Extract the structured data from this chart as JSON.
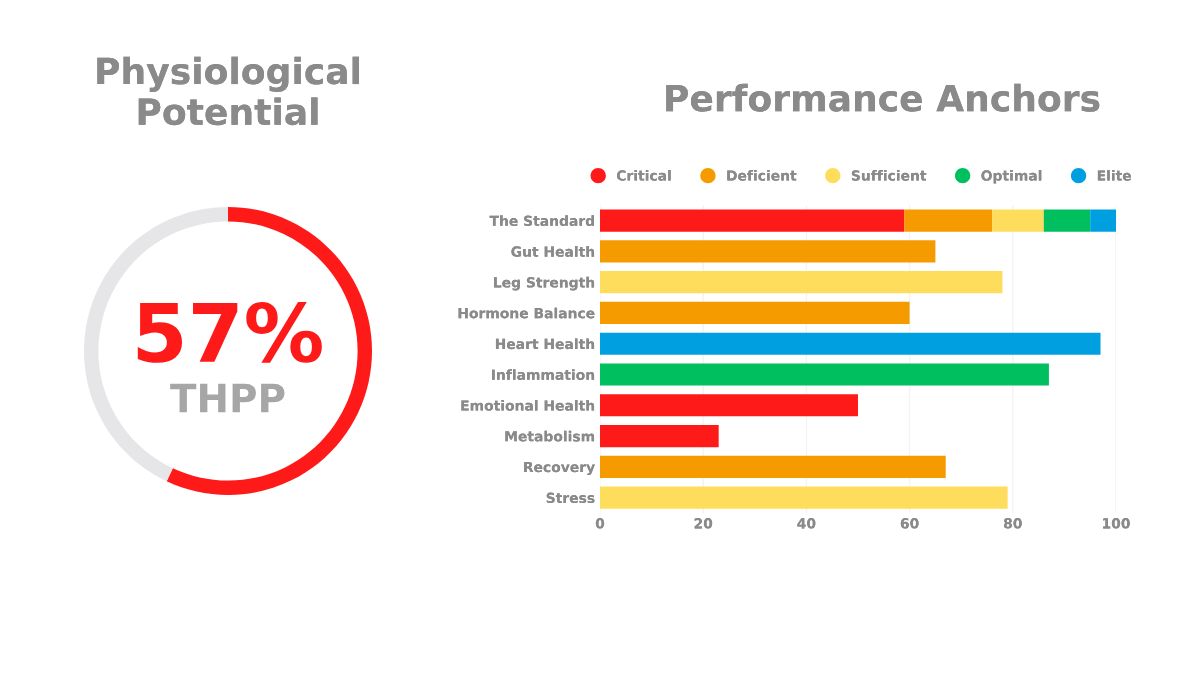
{
  "chart_data": [
    {
      "type": "donut",
      "title": "Physiological Potential",
      "categories": [
        null,
        null
      ],
      "values": [
        57,
        43
      ],
      "colors": [
        "#ff1a1a",
        "#e6e6e8"
      ],
      "annotations": [
        "57%",
        "THPP"
      ]
    },
    {
      "type": "bar",
      "title": "Performance Anchors",
      "orientation": "horizontal",
      "stacked": true,
      "categories": [
        "The Standard",
        "Gut Health",
        "Leg Strength",
        "Hormone Balance",
        "Heart Health",
        "Inflammation",
        "Emotional Health",
        "Metabolism",
        "Recovery",
        "Stress"
      ],
      "series": [
        {
          "name": "Critical",
          "color": "#ff1a1a",
          "values": [
            59,
            null,
            null,
            null,
            null,
            null,
            50,
            23,
            null,
            null
          ]
        },
        {
          "name": "Deficient",
          "color": "#f59b00",
          "values": [
            17,
            65,
            null,
            60,
            null,
            null,
            null,
            null,
            67,
            null
          ]
        },
        {
          "name": "Sufficient",
          "color": "#ffdd5c",
          "values": [
            10,
            null,
            78,
            null,
            null,
            null,
            null,
            null,
            null,
            79
          ]
        },
        {
          "name": "Optimal",
          "color": "#00bf5f",
          "values": [
            9,
            null,
            null,
            null,
            null,
            87,
            null,
            null,
            null,
            null
          ]
        },
        {
          "name": "Elite",
          "color": "#00a0e0",
          "values": [
            5,
            null,
            null,
            null,
            97,
            null,
            null,
            null,
            null,
            null
          ]
        }
      ],
      "xlim": [
        0,
        100
      ],
      "xticks": [
        0,
        20,
        40,
        60,
        80,
        100
      ],
      "grid": "x",
      "legend": "top",
      "marker": "circle"
    }
  ]
}
